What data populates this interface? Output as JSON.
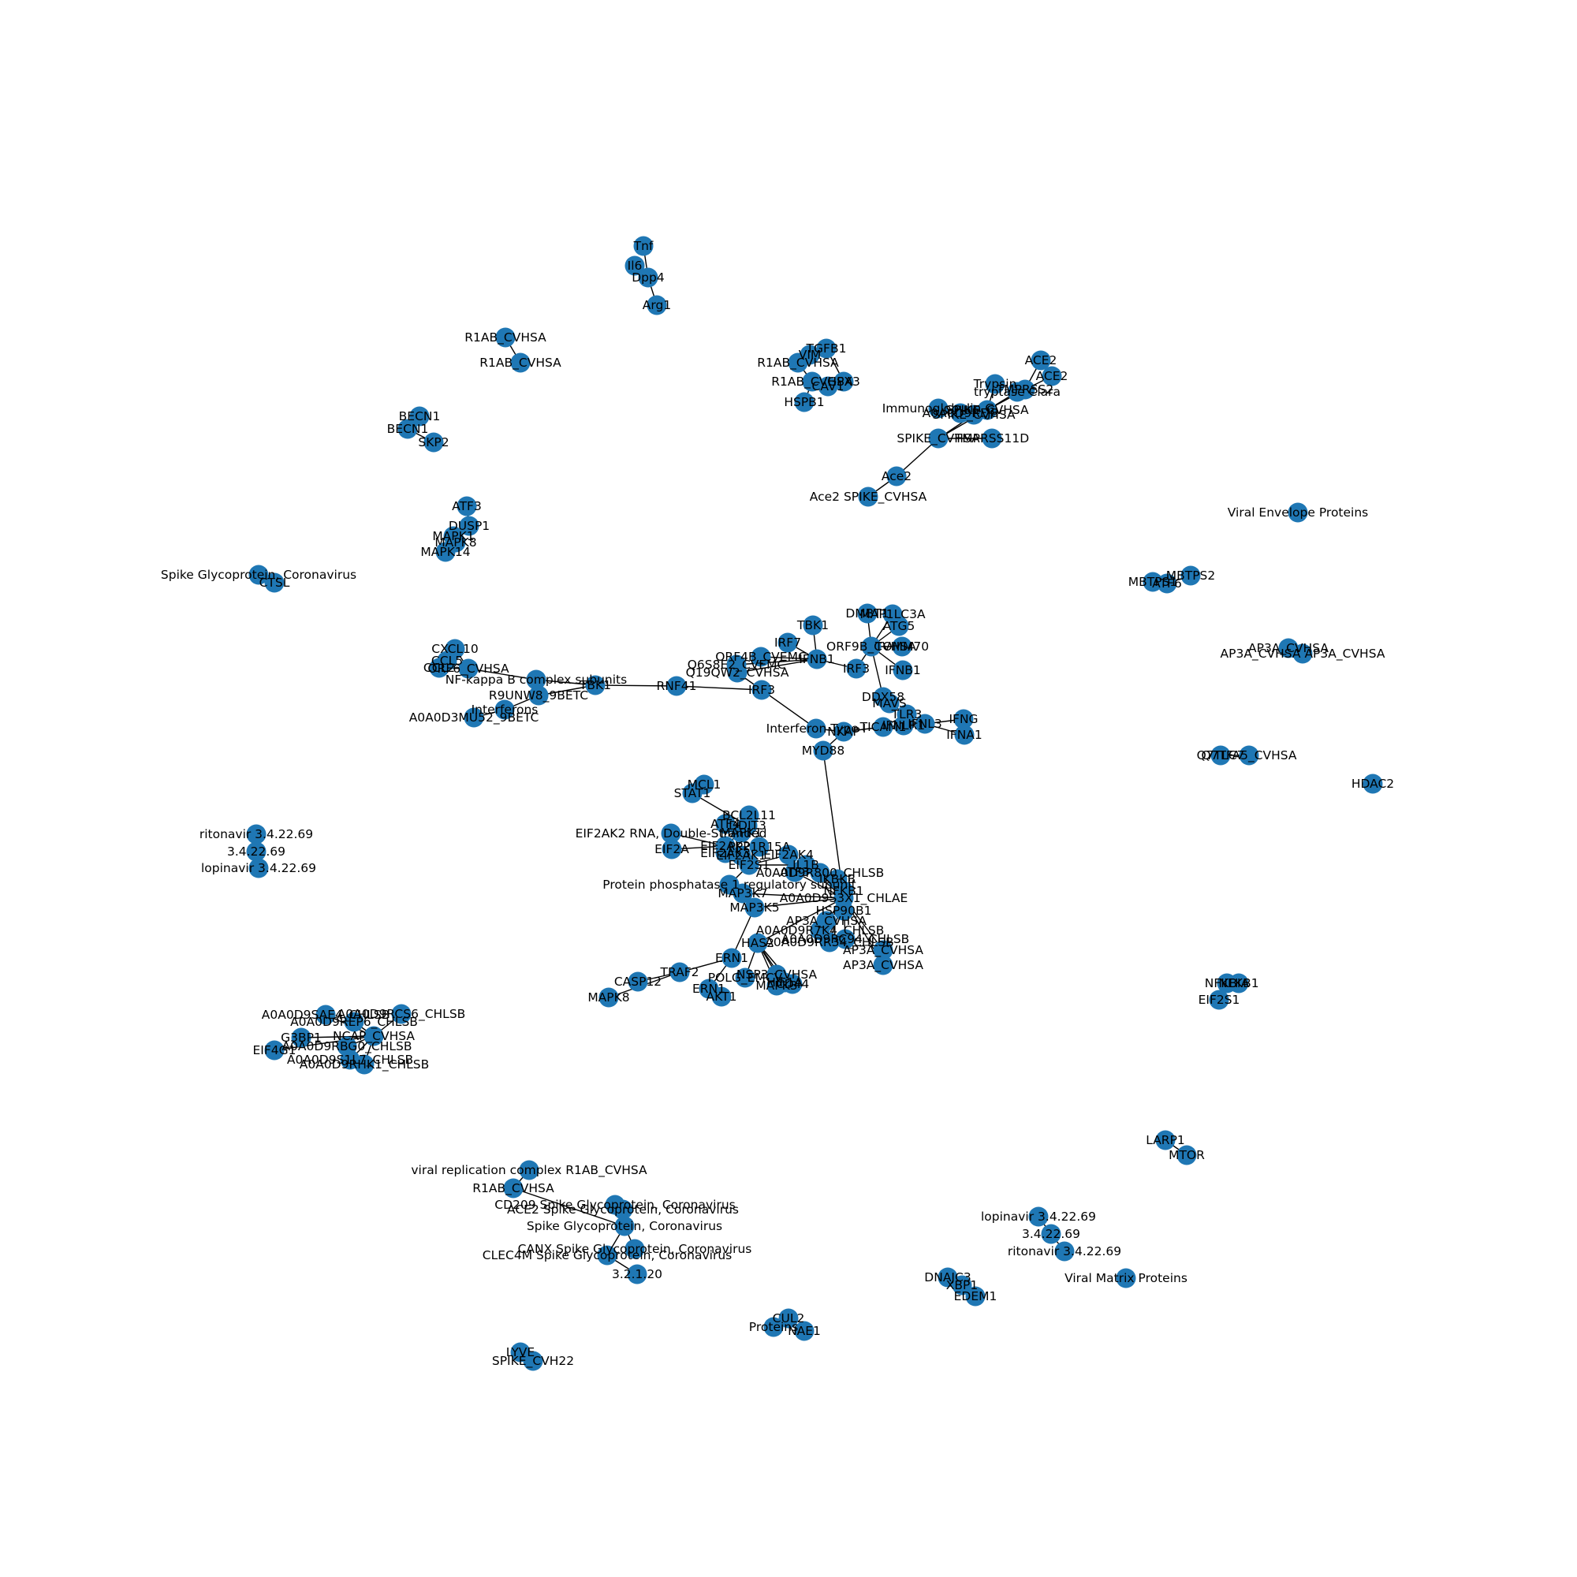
{
  "graph": {
    "node_color": "#1f77b4",
    "edge_color": "#000000",
    "nodes": [
      {
        "id": "tnf",
        "label": "Tnf"
      },
      {
        "id": "il6",
        "label": "Il6"
      },
      {
        "id": "dpp4",
        "label": "Dpp4"
      },
      {
        "id": "arg1",
        "label": "Arg1"
      },
      {
        "id": "r1ab_a1",
        "label": "R1AB_CVHSA"
      },
      {
        "id": "r1ab_a2",
        "label": "R1AB_CVHSA"
      },
      {
        "id": "becn1a",
        "label": "BECN1"
      },
      {
        "id": "becn1b",
        "label": "BECN1"
      },
      {
        "id": "skp2",
        "label": "SKP2"
      },
      {
        "id": "atf3",
        "label": "ATF3"
      },
      {
        "id": "dusp1",
        "label": "DUSP1"
      },
      {
        "id": "mapk1",
        "label": "MAPK1"
      },
      {
        "id": "mapk8a",
        "label": "MAPK8"
      },
      {
        "id": "mapk14",
        "label": "MAPK14"
      },
      {
        "id": "ctsl_sg",
        "label": "Spike Glycoprotein, Coronavirus"
      },
      {
        "id": "ctsl",
        "label": "CTSL"
      },
      {
        "id": "tgfb1",
        "label": "TGFB1"
      },
      {
        "id": "vim",
        "label": "VIM"
      },
      {
        "id": "r1ab_b",
        "label": "R1AB_CVHSA"
      },
      {
        "id": "r1ab_c",
        "label": "R1AB_CVHSA"
      },
      {
        "id": "gpx3",
        "label": "GPX3"
      },
      {
        "id": "cav1",
        "label": "CAV1"
      },
      {
        "id": "hspb1",
        "label": "HSPB1"
      },
      {
        "id": "ace2a",
        "label": "ACE2"
      },
      {
        "id": "ace2b",
        "label": "ACE2"
      },
      {
        "id": "tmprss2",
        "label": "TMPRSS2"
      },
      {
        "id": "trypsin",
        "label": "Trypsin"
      },
      {
        "id": "tryptase",
        "label": "tryptase Clara"
      },
      {
        "id": "immuno",
        "label": "Immunoglobulin G"
      },
      {
        "id": "spike_cvhsa1",
        "label": "SPIKE_CVHSA"
      },
      {
        "id": "a0a0d9_sg",
        "label": "A0A0D9RFJ8"
      },
      {
        "id": "spike_cvhsa2",
        "label": "SPIKE_CVHSA"
      },
      {
        "id": "spike_cvhsa3",
        "label": "SPIKE_CVHSA"
      },
      {
        "id": "tmprss11d",
        "label": "TMPRSS11D"
      },
      {
        "id": "ace2_m",
        "label": "Ace2"
      },
      {
        "id": "ace2_spike",
        "label": "Ace2 SPIKE_CVHSA"
      },
      {
        "id": "viral_env",
        "label": "Viral Envelope Proteins"
      },
      {
        "id": "mbtps2",
        "label": "MBTPS2"
      },
      {
        "id": "atf6",
        "label": "ATF6"
      },
      {
        "id": "mbtps1",
        "label": "MBTPS1"
      },
      {
        "id": "ap3a_1",
        "label": "AP3A_CVHSA"
      },
      {
        "id": "ap3a_2",
        "label": "AP3A_CVHSA AP3A_CVHSA"
      },
      {
        "id": "q7tlc7",
        "label": "Q7TLC7"
      },
      {
        "id": "q7tfa5",
        "label": "Q7TFA5_CVHSA"
      },
      {
        "id": "hdac2",
        "label": "HDAC2"
      },
      {
        "id": "tbk1",
        "label": "TBK1"
      },
      {
        "id": "dmbt1",
        "label": "DMBT1"
      },
      {
        "id": "map1lc3a",
        "label": "MAP1LC3A"
      },
      {
        "id": "atg5",
        "label": "ATG5"
      },
      {
        "id": "orf9b",
        "label": "ORF9B_CVHSA"
      },
      {
        "id": "tomm70",
        "label": "TOMM70"
      },
      {
        "id": "ifnb1a",
        "label": "IFNB1"
      },
      {
        "id": "irf3b",
        "label": "IRF3"
      },
      {
        "id": "irf7",
        "label": "IRF7"
      },
      {
        "id": "orf4b",
        "label": "ORF4B_CVEMC"
      },
      {
        "id": "q6s8e2",
        "label": "Q6S8E2_CVEMC"
      },
      {
        "id": "ifnb1b",
        "label": "IFNB1"
      },
      {
        "id": "q19qw2",
        "label": "Q19QW2_CVHSA"
      },
      {
        "id": "irf3a",
        "label": "IRF3"
      },
      {
        "id": "rnf41",
        "label": "RNF41"
      },
      {
        "id": "cxcl10",
        "label": "CXCL10"
      },
      {
        "id": "ccl5",
        "label": "CCL5"
      },
      {
        "id": "ccl2",
        "label": "CCL2"
      },
      {
        "id": "orf6",
        "label": "ORF6_CVHSA"
      },
      {
        "id": "nfkb_sub",
        "label": "NF-kappa B complex subunits"
      },
      {
        "id": "tbk1b",
        "label": "TBK1"
      },
      {
        "id": "r9unw8",
        "label": "R9UNW8_9BETC"
      },
      {
        "id": "interferons",
        "label": "Interferons"
      },
      {
        "id": "a0a0d3",
        "label": "A0A0D3MU52_9BETC"
      },
      {
        "id": "ddx58",
        "label": "DDX58"
      },
      {
        "id": "mavs",
        "label": "MAVS"
      },
      {
        "id": "tlr3",
        "label": "TLR3"
      },
      {
        "id": "ticam1",
        "label": "TICAM1"
      },
      {
        "id": "ifnlr",
        "label": "IFNLR1"
      },
      {
        "id": "ifnl3",
        "label": "IFNL3"
      },
      {
        "id": "ifng",
        "label": "IFNG"
      },
      {
        "id": "ifna1",
        "label": "IFNA1"
      },
      {
        "id": "ifn_type1",
        "label": "Interferon Type I"
      },
      {
        "id": "nkap",
        "label": "NKAP"
      },
      {
        "id": "myd88",
        "label": "MYD88"
      },
      {
        "id": "mcl1",
        "label": "MCL1"
      },
      {
        "id": "stat1",
        "label": "STAT1"
      },
      {
        "id": "bcl2l11",
        "label": "BCL2L11"
      },
      {
        "id": "atf4",
        "label": "ATF4"
      },
      {
        "id": "ddit3",
        "label": "DDIT3"
      },
      {
        "id": "mapk1b",
        "label": "MAPK1"
      },
      {
        "id": "eif2ak2_rna",
        "label": "EIF2AK2 RNA, Double-Stranded"
      },
      {
        "id": "eif2a",
        "label": "EIF2A"
      },
      {
        "id": "eif2ak2",
        "label": "EIF2AK2"
      },
      {
        "id": "eif2ak3",
        "label": "EIF2AK3"
      },
      {
        "id": "ppp1",
        "label": "PPP1R15A"
      },
      {
        "id": "eif2ak1",
        "label": "EIF2AK1"
      },
      {
        "id": "eif2s1",
        "label": "EIF2S1"
      },
      {
        "id": "eif2ak4",
        "label": "EIF2AK4"
      },
      {
        "id": "il1b",
        "label": "IL1B"
      },
      {
        "id": "pp_sub",
        "label": "Protein phosphatase 1 regulatory subunit"
      },
      {
        "id": "atf3b",
        "label": "ATF3"
      },
      {
        "id": "a0a0d9_c1",
        "label": "A0A0D9R800_CHLSB"
      },
      {
        "id": "map3k7",
        "label": "MAP3K7"
      },
      {
        "id": "ikbkb",
        "label": "IKBKB"
      },
      {
        "id": "nfkb1",
        "label": "NFKB1"
      },
      {
        "id": "map3k5",
        "label": "MAP3K5"
      },
      {
        "id": "chlae",
        "label": "A0A0D9S3X1_CHLAE"
      },
      {
        "id": "hsp90b1",
        "label": "HSP90B1"
      },
      {
        "id": "ap3a_3",
        "label": "AP3A_CVHSA"
      },
      {
        "id": "a0a0d9_c2",
        "label": "A0A0D9R7K4_CHLSB"
      },
      {
        "id": "a0a0d9_c3",
        "label": "A0A0D9RC94_CHLSB"
      },
      {
        "id": "a0a0d9_c4",
        "label": "A0A0D9RR34_CHLSB"
      },
      {
        "id": "ap3a_4",
        "label": "AP3A_CVHSA"
      },
      {
        "id": "ap3a_5",
        "label": "AP3A_CVHSA"
      },
      {
        "id": "has2",
        "label": "HAS2"
      },
      {
        "id": "ern1a",
        "label": "ERN1"
      },
      {
        "id": "traf2",
        "label": "TRAF2"
      },
      {
        "id": "mapk8b",
        "label": "MAPK8"
      },
      {
        "id": "casp12",
        "label": "CASP12"
      },
      {
        "id": "ern1b",
        "label": "ERN1"
      },
      {
        "id": "akt1",
        "label": "AKT1"
      },
      {
        "id": "polg",
        "label": "POLG_EMCV"
      },
      {
        "id": "nsp3",
        "label": "NSP3_CVHSA"
      },
      {
        "id": "hif1a",
        "label": "HIF1A"
      },
      {
        "id": "mapk3",
        "label": "MAPK3"
      },
      {
        "id": "cd44",
        "label": "CD44"
      },
      {
        "id": "ritonavir1",
        "label": "ritonavir 3.4.22.69"
      },
      {
        "id": "ec1",
        "label": "3.4.22.69"
      },
      {
        "id": "lopinavir1",
        "label": "lopinavir 3.4.22.69"
      },
      {
        "id": "nfkbia",
        "label": "NFKBIA"
      },
      {
        "id": "nfkb1b",
        "label": "NFKB1"
      },
      {
        "id": "eif2s1b",
        "label": "EIF2S1"
      },
      {
        "id": "chlsb_1",
        "label": "A0A0D9SAE4_CHLSB"
      },
      {
        "id": "chlsb_2",
        "label": "A0A0D9RCS6_CHLSB"
      },
      {
        "id": "chlsb_3",
        "label": "A0A0D9REP6_CHLSB"
      },
      {
        "id": "g3bp1",
        "label": "G3BP1"
      },
      {
        "id": "ncap",
        "label": "NCAP_CVHSA"
      },
      {
        "id": "chlsb_4",
        "label": "A0A0D9RBG0_CHLSB"
      },
      {
        "id": "eif4g1",
        "label": "EIF4G1"
      },
      {
        "id": "chlsb_5",
        "label": "A0A0D9S1L7_CHLSB"
      },
      {
        "id": "chlsb_6",
        "label": "A0A0D9RHK1_CHLSB"
      },
      {
        "id": "larp1",
        "label": "LARP1"
      },
      {
        "id": "mtor",
        "label": "MTOR"
      },
      {
        "id": "vrc",
        "label": "viral replication complex R1AB_CVHSA"
      },
      {
        "id": "r1ab_d",
        "label": "R1AB_CVHSA"
      },
      {
        "id": "cd209",
        "label": "CD209 Spike Glycoprotein, Coronavirus"
      },
      {
        "id": "ace2_sg",
        "label": "ACE2 Spike Glycoprotein, Coronavirus"
      },
      {
        "id": "sg",
        "label": "Spike Glycoprotein, Coronavirus"
      },
      {
        "id": "canx",
        "label": "CANX Spike Glycoprotein, Coronavirus"
      },
      {
        "id": "clec4m",
        "label": "CLEC4M Spike Glycoprotein, Coronavirus"
      },
      {
        "id": "ec3",
        "label": "3.2.1.20"
      },
      {
        "id": "lopinavir2",
        "label": "lopinavir 3.4.22.69"
      },
      {
        "id": "ec2",
        "label": "3.4.22.69"
      },
      {
        "id": "ritonavir2",
        "label": "ritonavir 3.4.22.69"
      },
      {
        "id": "viral_matrix",
        "label": "Viral Matrix Proteins"
      },
      {
        "id": "dnajc3",
        "label": "DNAJC3"
      },
      {
        "id": "xbp1",
        "label": "XBP1"
      },
      {
        "id": "edem1",
        "label": "EDEM1"
      },
      {
        "id": "proteins",
        "label": "Proteins"
      },
      {
        "id": "cul2",
        "label": "CUL2"
      },
      {
        "id": "nae1",
        "label": "NAE1"
      },
      {
        "id": "lyve",
        "label": "LYVE"
      },
      {
        "id": "spike_cvh22",
        "label": "SPIKE_CVH22"
      }
    ],
    "edges": [
      [
        "tnf",
        "dpp4"
      ],
      [
        "il6",
        "dpp4"
      ],
      [
        "dpp4",
        "arg1"
      ],
      [
        "r1ab_a1",
        "r1ab_a2"
      ],
      [
        "becn1a",
        "becn1b"
      ],
      [
        "becn1b",
        "skp2"
      ],
      [
        "atf3",
        "dusp1"
      ],
      [
        "dusp1",
        "mapk1"
      ],
      [
        "dusp1",
        "mapk8a"
      ],
      [
        "dusp1",
        "mapk14"
      ],
      [
        "ctsl_sg",
        "ctsl"
      ],
      [
        "tgfb1",
        "vim"
      ],
      [
        "tgfb1",
        "gpx3"
      ],
      [
        "vim",
        "r1ab_b"
      ],
      [
        "r1ab_b",
        "r1ab_c"
      ],
      [
        "gpx3",
        "cav1"
      ],
      [
        "r1ab_c",
        "hspb1"
      ],
      [
        "ace2a",
        "tmprss2"
      ],
      [
        "ace2b",
        "tmprss2"
      ],
      [
        "trypsin",
        "spike_cvhsa1"
      ],
      [
        "tryptase",
        "spike_cvhsa1"
      ],
      [
        "immuno",
        "spike_cvhsa2"
      ],
      [
        "a0a0d9_sg",
        "spike_cvhsa2"
      ],
      [
        "spike_cvhsa1",
        "spike_cvhsa2"
      ],
      [
        "tmprss2",
        "spike_cvhsa1"
      ],
      [
        "spike_cvhsa1",
        "spike_cvhsa3"
      ],
      [
        "spike_cvhsa2",
        "spike_cvhsa3"
      ],
      [
        "spike_cvhsa3",
        "tmprss11d"
      ],
      [
        "spike_cvhsa3",
        "ace2_m"
      ],
      [
        "ace2_m",
        "ace2_spike"
      ],
      [
        "mbtps2",
        "atf6"
      ],
      [
        "atf6",
        "mbtps1"
      ],
      [
        "ap3a_1",
        "ap3a_2"
      ],
      [
        "q7tlc7",
        "q7tfa5"
      ],
      [
        "tbk1",
        "ifnb1b"
      ],
      [
        "irf7",
        "ifnb1b"
      ],
      [
        "orf4b",
        "ifnb1b"
      ],
      [
        "q6s8e2",
        "ifnb1b"
      ],
      [
        "q19qw2",
        "ifnb1b"
      ],
      [
        "ifnb1b",
        "irf3b"
      ],
      [
        "irf3b",
        "orf9b"
      ],
      [
        "dmbt1",
        "orf9b"
      ],
      [
        "map1lc3a",
        "orf9b"
      ],
      [
        "atg5",
        "orf9b"
      ],
      [
        "tomm70",
        "orf9b"
      ],
      [
        "ifnb1a",
        "orf9b"
      ],
      [
        "orf9b",
        "ddx58"
      ],
      [
        "q19qw2",
        "irf3a"
      ],
      [
        "rnf41",
        "irf3a"
      ],
      [
        "tbk1b",
        "rnf41"
      ],
      [
        "irf3a",
        "ifn_type1"
      ],
      [
        "cxcl10",
        "orf6"
      ],
      [
        "ccl5",
        "orf6"
      ],
      [
        "ccl2",
        "orf6"
      ],
      [
        "orf6",
        "nfkb_sub"
      ],
      [
        "nfkb_sub",
        "tbk1b"
      ],
      [
        "r9unw8",
        "tbk1b"
      ],
      [
        "interferons",
        "r9unw8"
      ],
      [
        "a0a0d3",
        "interferons"
      ],
      [
        "ddx58",
        "mavs"
      ],
      [
        "mavs",
        "tlr3"
      ],
      [
        "tlr3",
        "ticam1"
      ],
      [
        "ticam1",
        "ifnlr"
      ],
      [
        "ifnlr",
        "ifnl3"
      ],
      [
        "ifnl3",
        "ifng"
      ],
      [
        "ifnl3",
        "ifna1"
      ],
      [
        "ifn_type1",
        "nkap"
      ],
      [
        "nkap",
        "ticam1"
      ],
      [
        "nkap",
        "myd88"
      ],
      [
        "myd88",
        "chlae"
      ],
      [
        "mcl1",
        "stat1"
      ],
      [
        "stat1",
        "ddit3"
      ],
      [
        "bcl2l11",
        "ddit3"
      ],
      [
        "atf4",
        "ddit3"
      ],
      [
        "mapk1b",
        "ddit3"
      ],
      [
        "ddit3",
        "eif2ak2"
      ],
      [
        "eif2ak2_rna",
        "eif2ak2"
      ],
      [
        "eif2a",
        "eif2ak2"
      ],
      [
        "eif2ak3",
        "eif2s1"
      ],
      [
        "eif2ak2",
        "eif2s1"
      ],
      [
        "ppp1",
        "eif2s1"
      ],
      [
        "eif2ak1",
        "eif2s1"
      ],
      [
        "eif2ak4",
        "eif2s1"
      ],
      [
        "eif2s1",
        "pp_sub"
      ],
      [
        "eif2s1",
        "il1b"
      ],
      [
        "il1b",
        "chlae"
      ],
      [
        "atf3b",
        "chlae"
      ],
      [
        "a0a0d9_c1",
        "chlae"
      ],
      [
        "map3k7",
        "chlae"
      ],
      [
        "ikbkb",
        "chlae"
      ],
      [
        "nfkb1",
        "chlae"
      ],
      [
        "map3k5",
        "chlae"
      ],
      [
        "hsp90b1",
        "chlae"
      ],
      [
        "ap3a_3",
        "chlae"
      ],
      [
        "a0a0d9_c2",
        "chlae"
      ],
      [
        "a0a0d9_c3",
        "chlae"
      ],
      [
        "a0a0d9_c4",
        "chlae"
      ],
      [
        "ap3a_4",
        "chlae"
      ],
      [
        "ap3a_5",
        "chlae"
      ],
      [
        "has2",
        "chlae"
      ],
      [
        "map3k5",
        "ern1a"
      ],
      [
        "ern1a",
        "traf2"
      ],
      [
        "traf2",
        "mapk8b"
      ],
      [
        "traf2",
        "casp12"
      ],
      [
        "ern1a",
        "ern1b"
      ],
      [
        "ern1b",
        "akt1"
      ],
      [
        "has2",
        "polg"
      ],
      [
        "has2",
        "nsp3"
      ],
      [
        "has2",
        "hif1a"
      ],
      [
        "has2",
        "mapk3"
      ],
      [
        "has2",
        "cd44"
      ],
      [
        "ritonavir1",
        "ec1"
      ],
      [
        "ec1",
        "lopinavir1"
      ],
      [
        "nfkbia",
        "nfkb1b"
      ],
      [
        "nfkbia",
        "eif2s1b"
      ],
      [
        "chlsb_1",
        "ncap"
      ],
      [
        "chlsb_2",
        "ncap"
      ],
      [
        "chlsb_3",
        "ncap"
      ],
      [
        "g3bp1",
        "ncap"
      ],
      [
        "chlsb_4",
        "ncap"
      ],
      [
        "eif4g1",
        "ncap"
      ],
      [
        "chlsb_5",
        "ncap"
      ],
      [
        "chlsb_6",
        "ncap"
      ],
      [
        "larp1",
        "mtor"
      ],
      [
        "vrc",
        "r1ab_d"
      ],
      [
        "r1ab_d",
        "sg"
      ],
      [
        "cd209",
        "sg"
      ],
      [
        "ace2_sg",
        "sg"
      ],
      [
        "sg",
        "canx"
      ],
      [
        "sg",
        "clec4m"
      ],
      [
        "clec4m",
        "ec3"
      ],
      [
        "lopinavir2",
        "ec2"
      ],
      [
        "ec2",
        "ritonavir2"
      ],
      [
        "dnajc3",
        "xbp1"
      ],
      [
        "xbp1",
        "edem1"
      ],
      [
        "proteins",
        "cul2"
      ],
      [
        "cul2",
        "nae1"
      ],
      [
        "lyve",
        "spike_cvh22"
      ]
    ]
  }
}
